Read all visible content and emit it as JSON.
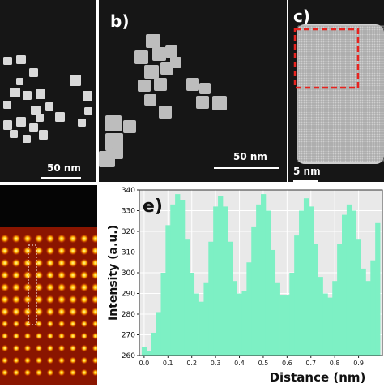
{
  "panels": {
    "a": {
      "label": "",
      "scale_bar": "50 nm"
    },
    "b": {
      "label": "b)",
      "scale_bar": "50 nm"
    },
    "c": {
      "label": "c)",
      "scale_bar": "5 nm"
    },
    "d": {
      "label": ""
    },
    "e": {
      "label": "e)"
    }
  },
  "colors": {
    "stem_background": "#161616",
    "nanocube": "#d9d9d9",
    "highlight_box": "#e8231f",
    "bar_fill": "#7df0c4",
    "plot_background": "#e9e9e9"
  },
  "chart_data": {
    "type": "bar",
    "title": "",
    "xlabel": "Distance (nm)",
    "ylabel": "Intensity (a.u.)",
    "xlim": [
      -0.02,
      1.0
    ],
    "ylim": [
      260,
      340
    ],
    "xticks": [
      "0.0",
      "0.1",
      "0.2",
      "0.3",
      "0.4",
      "0.5",
      "0.6",
      "0.7",
      "0.8",
      "0.9"
    ],
    "yticks": [
      "260",
      "270",
      "280",
      "290",
      "300",
      "310",
      "320",
      "330",
      "340"
    ],
    "grid": true,
    "x": [
      0.0,
      0.02,
      0.04,
      0.06,
      0.08,
      0.1,
      0.12,
      0.14,
      0.16,
      0.18,
      0.2,
      0.22,
      0.24,
      0.26,
      0.28,
      0.3,
      0.32,
      0.34,
      0.36,
      0.38,
      0.4,
      0.42,
      0.44,
      0.46,
      0.48,
      0.5,
      0.52,
      0.54,
      0.56,
      0.58,
      0.6,
      0.62,
      0.64,
      0.66,
      0.68,
      0.7,
      0.72,
      0.74,
      0.76,
      0.78,
      0.8,
      0.82,
      0.84,
      0.86,
      0.88,
      0.9,
      0.92,
      0.94,
      0.96,
      0.98
    ],
    "values": [
      264,
      262,
      271,
      281,
      300,
      323,
      333,
      338,
      335,
      316,
      300,
      290,
      286,
      295,
      315,
      332,
      337,
      332,
      315,
      296,
      290,
      291,
      305,
      322,
      333,
      338,
      330,
      311,
      295,
      289,
      289,
      300,
      318,
      330,
      336,
      332,
      314,
      298,
      290,
      288,
      296,
      314,
      328,
      333,
      330,
      316,
      302,
      296,
      306,
      324
    ]
  }
}
